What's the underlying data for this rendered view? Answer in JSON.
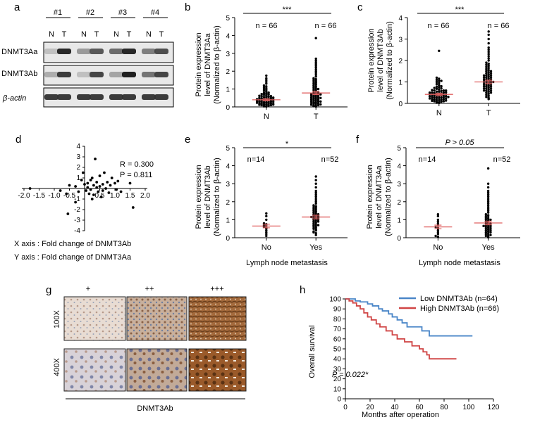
{
  "figure": {
    "panel_letters": [
      "a",
      "b",
      "c",
      "d",
      "e",
      "f",
      "g",
      "h"
    ],
    "colors": {
      "mean_bar": "#e06060",
      "low_curve": "#4a86c8",
      "high_curve": "#d04545",
      "blot_bg": "#e8e8e8",
      "band": "#1a1a1a"
    }
  },
  "panel_a": {
    "groups": [
      "#1",
      "#2",
      "#3",
      "#4"
    ],
    "lanes": [
      "N",
      "T",
      "N",
      "T",
      "N",
      "T",
      "N",
      "T"
    ],
    "rows": [
      "DNMT3Aa",
      "DNMT3Ab",
      "β-actin"
    ],
    "band_intensity": {
      "DNMT3Aa": [
        0.15,
        0.95,
        0.35,
        0.7,
        0.6,
        0.95,
        0.5,
        0.75
      ],
      "DNMT3Ab": [
        0.25,
        0.85,
        0.15,
        0.8,
        0.3,
        1.0,
        0.55,
        0.8
      ],
      "beta_actin": [
        0.85,
        0.85,
        0.85,
        0.85,
        0.85,
        0.85,
        0.85,
        0.85
      ]
    }
  },
  "panel_g": {
    "columns": [
      "+",
      "++",
      "+++"
    ],
    "rows": [
      "100X",
      "400X"
    ],
    "caption": "DNMT3Ab"
  },
  "chart_data": [
    {
      "id": "b",
      "type": "scatter",
      "ylabel": [
        "Protein expression",
        "level of DNMT3Aa",
        "(Normalized to β-actin)"
      ],
      "categories": [
        "N",
        "T"
      ],
      "ylim": [
        0,
        5
      ],
      "yticks": [
        0,
        1,
        2,
        3,
        4,
        5
      ],
      "n_labels": [
        "n = 66",
        "n = 66"
      ],
      "significance": "***",
      "means": [
        0.4,
        0.78
      ],
      "sem": [
        0.05,
        0.09
      ],
      "series": [
        {
          "name": "N",
          "values": [
            0.02,
            0.03,
            0.05,
            0.06,
            0.08,
            0.1,
            0.1,
            0.12,
            0.13,
            0.15,
            0.15,
            0.17,
            0.18,
            0.2,
            0.2,
            0.22,
            0.23,
            0.25,
            0.25,
            0.27,
            0.28,
            0.3,
            0.3,
            0.32,
            0.33,
            0.35,
            0.35,
            0.37,
            0.38,
            0.4,
            0.4,
            0.42,
            0.43,
            0.45,
            0.45,
            0.47,
            0.48,
            0.5,
            0.5,
            0.52,
            0.55,
            0.55,
            0.58,
            0.6,
            0.6,
            0.62,
            0.65,
            0.68,
            0.7,
            0.72,
            0.75,
            0.78,
            0.8,
            0.85,
            0.9,
            0.95,
            1.0,
            1.05,
            1.1,
            1.15,
            1.2,
            1.3,
            1.4,
            1.5,
            1.6,
            1.75
          ]
        },
        {
          "name": "T",
          "values": [
            0.02,
            0.04,
            0.06,
            0.08,
            0.1,
            0.12,
            0.14,
            0.16,
            0.18,
            0.2,
            0.22,
            0.25,
            0.27,
            0.3,
            0.32,
            0.35,
            0.38,
            0.4,
            0.42,
            0.45,
            0.48,
            0.5,
            0.52,
            0.55,
            0.58,
            0.6,
            0.62,
            0.65,
            0.68,
            0.7,
            0.72,
            0.75,
            0.78,
            0.8,
            0.85,
            0.9,
            0.95,
            1.0,
            1.05,
            1.1,
            1.15,
            1.2,
            1.25,
            1.3,
            1.35,
            1.4,
            1.45,
            1.5,
            1.55,
            1.6,
            1.7,
            1.8,
            1.9,
            2.0,
            2.1,
            2.2,
            2.3,
            2.4,
            2.5,
            2.6,
            2.7,
            0.3,
            0.5,
            0.7,
            1.0,
            3.85
          ]
        }
      ]
    },
    {
      "id": "c",
      "type": "scatter",
      "ylabel": [
        "Protein expression",
        "level of DNMT3Ab",
        "(Normalized to β-actin)"
      ],
      "categories": [
        "N",
        "T"
      ],
      "ylim": [
        0,
        4
      ],
      "yticks": [
        0,
        1,
        2,
        3,
        4
      ],
      "n_labels": [
        "n = 66",
        "n = 66"
      ],
      "significance": "***",
      "means": [
        0.42,
        1.0
      ],
      "sem": [
        0.05,
        0.08
      ],
      "series": [
        {
          "name": "N",
          "values": [
            0.02,
            0.03,
            0.05,
            0.06,
            0.08,
            0.1,
            0.1,
            0.12,
            0.13,
            0.15,
            0.15,
            0.17,
            0.18,
            0.2,
            0.2,
            0.22,
            0.23,
            0.25,
            0.25,
            0.27,
            0.28,
            0.3,
            0.3,
            0.32,
            0.33,
            0.35,
            0.35,
            0.37,
            0.38,
            0.4,
            0.4,
            0.42,
            0.43,
            0.45,
            0.45,
            0.47,
            0.48,
            0.5,
            0.5,
            0.52,
            0.55,
            0.55,
            0.58,
            0.6,
            0.6,
            0.62,
            0.65,
            0.68,
            0.7,
            0.72,
            0.75,
            0.78,
            0.8,
            0.85,
            0.9,
            0.95,
            1.0,
            1.05,
            1.1,
            1.15,
            1.2,
            1.05,
            0.6,
            0.3,
            0.5,
            2.45
          ]
        },
        {
          "name": "T",
          "values": [
            0.2,
            0.25,
            0.3,
            0.35,
            0.4,
            0.45,
            0.5,
            0.5,
            0.55,
            0.6,
            0.6,
            0.65,
            0.7,
            0.7,
            0.75,
            0.8,
            0.8,
            0.85,
            0.9,
            0.9,
            0.95,
            1.0,
            1.0,
            1.0,
            1.05,
            1.1,
            1.1,
            1.15,
            1.2,
            1.2,
            1.25,
            1.3,
            1.3,
            1.35,
            1.4,
            1.4,
            1.45,
            1.5,
            1.55,
            1.6,
            1.65,
            1.7,
            1.75,
            1.8,
            1.85,
            1.9,
            2.0,
            2.1,
            2.2,
            2.3,
            2.4,
            2.5,
            2.6,
            2.8,
            3.0,
            3.2,
            3.35,
            0.9,
            1.1,
            0.7,
            0.6,
            1.3,
            1.5,
            0.8,
            1.0,
            1.2
          ]
        }
      ]
    },
    {
      "id": "d",
      "type": "scatter",
      "annotation": [
        "R = 0.300",
        "P = 0.811"
      ],
      "xlim": [
        -2.0,
        2.0
      ],
      "ylim": [
        -4,
        4
      ],
      "xticks": [
        -2.0,
        -1.5,
        -1.0,
        -0.5,
        0.5,
        1.0,
        1.5,
        2.0
      ],
      "yticks": [
        -4,
        -3,
        -2,
        -1,
        1,
        2,
        3,
        4
      ],
      "xticklabels": [
        "-2.0",
        "-1.5",
        "-1.0",
        "-0.5",
        "0.5",
        "1.0",
        "1.5",
        "2.0"
      ],
      "yticklabels": [
        "-4",
        "-3",
        "-2",
        "-1",
        "1",
        "2",
        "3",
        "4"
      ],
      "axis_notes": [
        "X axis : Fold change of  DNMT3Ab",
        "Y axis : Fold change of  DNMT3Aa"
      ],
      "points": [
        [
          -1.8,
          0.0
        ],
        [
          -0.8,
          -0.2
        ],
        [
          -0.6,
          -0.5
        ],
        [
          -0.5,
          0.3
        ],
        [
          -0.3,
          0.2
        ],
        [
          -0.2,
          -0.3
        ],
        [
          -0.1,
          0.8
        ],
        [
          0.0,
          0.4
        ],
        [
          0.05,
          -0.2
        ],
        [
          0.1,
          0.5
        ],
        [
          0.1,
          0.1
        ],
        [
          0.15,
          -0.5
        ],
        [
          0.2,
          0.8
        ],
        [
          0.2,
          -0.1
        ],
        [
          0.25,
          1.0
        ],
        [
          0.3,
          0.3
        ],
        [
          0.3,
          -0.6
        ],
        [
          0.35,
          2.8
        ],
        [
          0.4,
          0.1
        ],
        [
          0.4,
          0.6
        ],
        [
          0.45,
          -0.3
        ],
        [
          0.5,
          0.2
        ],
        [
          0.5,
          1.2
        ],
        [
          0.55,
          -0.8
        ],
        [
          0.6,
          0.4
        ],
        [
          0.6,
          -0.2
        ],
        [
          0.65,
          1.5
        ],
        [
          0.7,
          0.0
        ],
        [
          0.75,
          0.6
        ],
        [
          0.8,
          -0.4
        ],
        [
          0.85,
          0.3
        ],
        [
          0.9,
          1.0
        ],
        [
          1.0,
          0.5
        ],
        [
          1.05,
          -0.1
        ],
        [
          1.1,
          0.7
        ],
        [
          1.2,
          -0.3
        ],
        [
          1.5,
          0.5
        ],
        [
          1.6,
          -1.8
        ],
        [
          -0.55,
          -2.4
        ],
        [
          -0.3,
          -1.3
        ],
        [
          -0.05,
          1.5
        ],
        [
          0.25,
          -1.0
        ]
      ]
    },
    {
      "id": "e",
      "type": "scatter",
      "ylabel": [
        "Protein expression",
        "level of DNMT3Ab",
        "(Normalized to β-actin)"
      ],
      "xlabel": "Lymph node metastasis",
      "categories": [
        "No",
        "Yes"
      ],
      "ylim": [
        0,
        5
      ],
      "yticks": [
        0,
        1,
        2,
        3,
        4,
        5
      ],
      "n_labels": [
        "n=14",
        "n=52"
      ],
      "significance": "*",
      "means": [
        0.65,
        1.15
      ],
      "sem": [
        0.1,
        0.1
      ],
      "series": [
        {
          "name": "No",
          "values": [
            0.1,
            0.2,
            0.3,
            0.4,
            0.5,
            0.55,
            0.6,
            0.65,
            0.7,
            0.75,
            0.8,
            1.0,
            1.2,
            1.35
          ]
        },
        {
          "name": "Yes",
          "values": [
            0.15,
            0.25,
            0.3,
            0.4,
            0.45,
            0.5,
            0.55,
            0.6,
            0.65,
            0.7,
            0.75,
            0.8,
            0.85,
            0.9,
            0.95,
            1.0,
            1.0,
            1.05,
            1.1,
            1.1,
            1.15,
            1.2,
            1.2,
            1.25,
            1.3,
            1.3,
            1.35,
            1.4,
            1.45,
            1.5,
            1.55,
            1.6,
            1.65,
            1.7,
            1.75,
            1.8,
            1.9,
            2.0,
            2.1,
            2.2,
            2.3,
            2.4,
            2.5,
            2.6,
            2.8,
            3.0,
            3.2,
            3.4,
            0.35,
            0.9,
            1.15,
            0.7
          ]
        }
      ]
    },
    {
      "id": "f",
      "type": "scatter",
      "ylabel": [
        "Protein expression",
        "level of DNMT3Aa",
        "(Normalized to β-actin)"
      ],
      "xlabel": "Lymph node metastasis",
      "categories": [
        "No",
        "Yes"
      ],
      "ylim": [
        0,
        5
      ],
      "yticks": [
        0,
        1,
        2,
        3,
        4,
        5
      ],
      "n_labels": [
        "n=14",
        "n=52"
      ],
      "significance": "P > 0.05",
      "means": [
        0.6,
        0.82
      ],
      "sem": [
        0.1,
        0.1
      ],
      "series": [
        {
          "name": "No",
          "values": [
            0.05,
            0.1,
            0.2,
            0.3,
            0.4,
            0.5,
            0.55,
            0.6,
            0.7,
            0.8,
            0.9,
            1.0,
            1.2,
            1.3
          ]
        },
        {
          "name": "Yes",
          "values": [
            0.02,
            0.05,
            0.1,
            0.15,
            0.2,
            0.25,
            0.3,
            0.3,
            0.35,
            0.4,
            0.4,
            0.45,
            0.5,
            0.5,
            0.55,
            0.6,
            0.6,
            0.65,
            0.7,
            0.7,
            0.75,
            0.8,
            0.8,
            0.85,
            0.9,
            0.95,
            1.0,
            1.0,
            1.05,
            1.1,
            1.15,
            1.2,
            1.25,
            1.3,
            1.4,
            1.5,
            1.6,
            1.7,
            1.8,
            1.9,
            2.0,
            2.1,
            2.2,
            2.3,
            2.4,
            2.5,
            2.6,
            2.8,
            3.0,
            3.85,
            0.15,
            0.65
          ]
        }
      ]
    },
    {
      "id": "h",
      "type": "line",
      "ylabel": "Overall survival",
      "xlabel": "Months after operation",
      "xlim": [
        0,
        120
      ],
      "ylim": [
        0,
        100
      ],
      "xticks": [
        0,
        20,
        40,
        60,
        80,
        100,
        120
      ],
      "yticks": [
        0,
        10,
        20,
        30,
        40,
        50,
        60,
        70,
        80,
        90,
        100
      ],
      "annotation": "P = 0.022*",
      "series": [
        {
          "name": "Low DNMT3Ab (n=64)",
          "color": "#4a86c8",
          "steps": [
            [
              0,
              100
            ],
            [
              5,
              100
            ],
            [
              8,
              98
            ],
            [
              12,
              97
            ],
            [
              18,
              95
            ],
            [
              22,
              93
            ],
            [
              27,
              90
            ],
            [
              30,
              88
            ],
            [
              35,
              85
            ],
            [
              38,
              82
            ],
            [
              42,
              79
            ],
            [
              46,
              76
            ],
            [
              50,
              72
            ],
            [
              62,
              68
            ],
            [
              68,
              63
            ],
            [
              103,
              63
            ]
          ]
        },
        {
          "name": "High DNMT3Ab (n=66)",
          "color": "#d04545",
          "steps": [
            [
              0,
              100
            ],
            [
              3,
              98
            ],
            [
              6,
              96
            ],
            [
              9,
              93
            ],
            [
              12,
              90
            ],
            [
              15,
              86
            ],
            [
              18,
              82
            ],
            [
              21,
              79
            ],
            [
              25,
              75
            ],
            [
              28,
              72
            ],
            [
              33,
              68
            ],
            [
              38,
              64
            ],
            [
              42,
              60
            ],
            [
              48,
              57
            ],
            [
              54,
              53
            ],
            [
              60,
              50
            ],
            [
              63,
              47
            ],
            [
              66,
              44
            ],
            [
              68,
              40
            ],
            [
              90,
              40
            ]
          ]
        }
      ]
    }
  ]
}
